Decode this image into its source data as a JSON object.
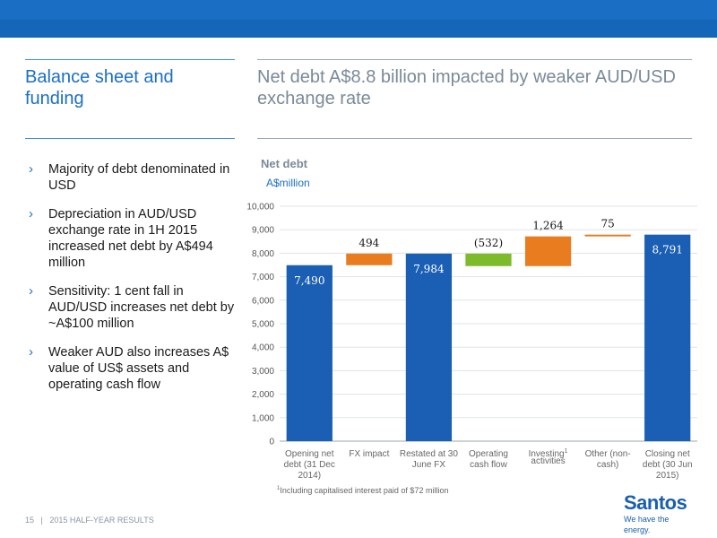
{
  "header": {
    "left_title": "Balance sheet and funding",
    "right_title": "Net debt A$8.8 billion impacted by weaker AUD/USD exchange rate"
  },
  "bullets": [
    "Majority of debt denominated in USD",
    "Depreciation in AUD/USD exchange rate in 1H 2015 increased net debt by A$494 million",
    "Sensitivity: 1 cent fall in AUD/USD increases net debt by ~A$100 million",
    "Weaker AUD also increases A$ value of US$ assets and operating cash flow"
  ],
  "chart_heading": "Net debt",
  "chart_unit": "A$million",
  "chart_data": {
    "type": "bar",
    "subtype": "waterfall",
    "title": "Net debt",
    "ylabel": "A$million",
    "ylim": [
      0,
      10000
    ],
    "yticks": [
      0,
      1000,
      2000,
      3000,
      4000,
      5000,
      6000,
      7000,
      8000,
      9000,
      10000
    ],
    "ytick_labels": [
      "0",
      "1,000",
      "2,000",
      "3,000",
      "4,000",
      "5,000",
      "6,000",
      "7,000",
      "8,000",
      "9,000",
      "10,000"
    ],
    "grid": true,
    "categories": [
      {
        "label_lines": [
          "Opening net",
          "debt (31 Dec",
          "2014)"
        ],
        "sup": ""
      },
      {
        "label_lines": [
          "FX impact"
        ],
        "sup": ""
      },
      {
        "label_lines": [
          "Restated at 30",
          "June FX"
        ],
        "sup": ""
      },
      {
        "label_lines": [
          "Operating",
          "cash flow"
        ],
        "sup": ""
      },
      {
        "label_lines": [
          "Investing",
          "activities"
        ],
        "sup": "1"
      },
      {
        "label_lines": [
          "Other (non-",
          "cash)"
        ],
        "sup": ""
      },
      {
        "label_lines": [
          "Closing net",
          "debt (30 Jun",
          "2015)"
        ],
        "sup": ""
      }
    ],
    "bars": [
      {
        "kind": "total",
        "start": 0,
        "end": 7490,
        "label": "7,490",
        "color": "#1a5fb4"
      },
      {
        "kind": "increase",
        "start": 7490,
        "end": 7984,
        "label": "494",
        "color": "#e87c1e"
      },
      {
        "kind": "total",
        "start": 0,
        "end": 7984,
        "label": "7,984",
        "color": "#1a5fb4"
      },
      {
        "kind": "decrease",
        "start": 7452,
        "end": 7984,
        "label": "(532)",
        "color": "#7dbb2a"
      },
      {
        "kind": "increase",
        "start": 7452,
        "end": 8716,
        "label": "1,264",
        "color": "#e87c1e"
      },
      {
        "kind": "increase",
        "start": 8716,
        "end": 8791,
        "label": "75",
        "color": "#e87c1e"
      },
      {
        "kind": "total",
        "start": 0,
        "end": 8791,
        "label": "8,791",
        "color": "#1a5fb4"
      }
    ]
  },
  "footnote": {
    "sup": "1",
    "text": "Including capitalised interest paid of $72 million"
  },
  "footer": {
    "page": "15",
    "sep": "|",
    "text": "2015 HALF-YEAR RESULTS"
  },
  "logo": {
    "name": "Santos",
    "tagline": "We have the energy."
  }
}
